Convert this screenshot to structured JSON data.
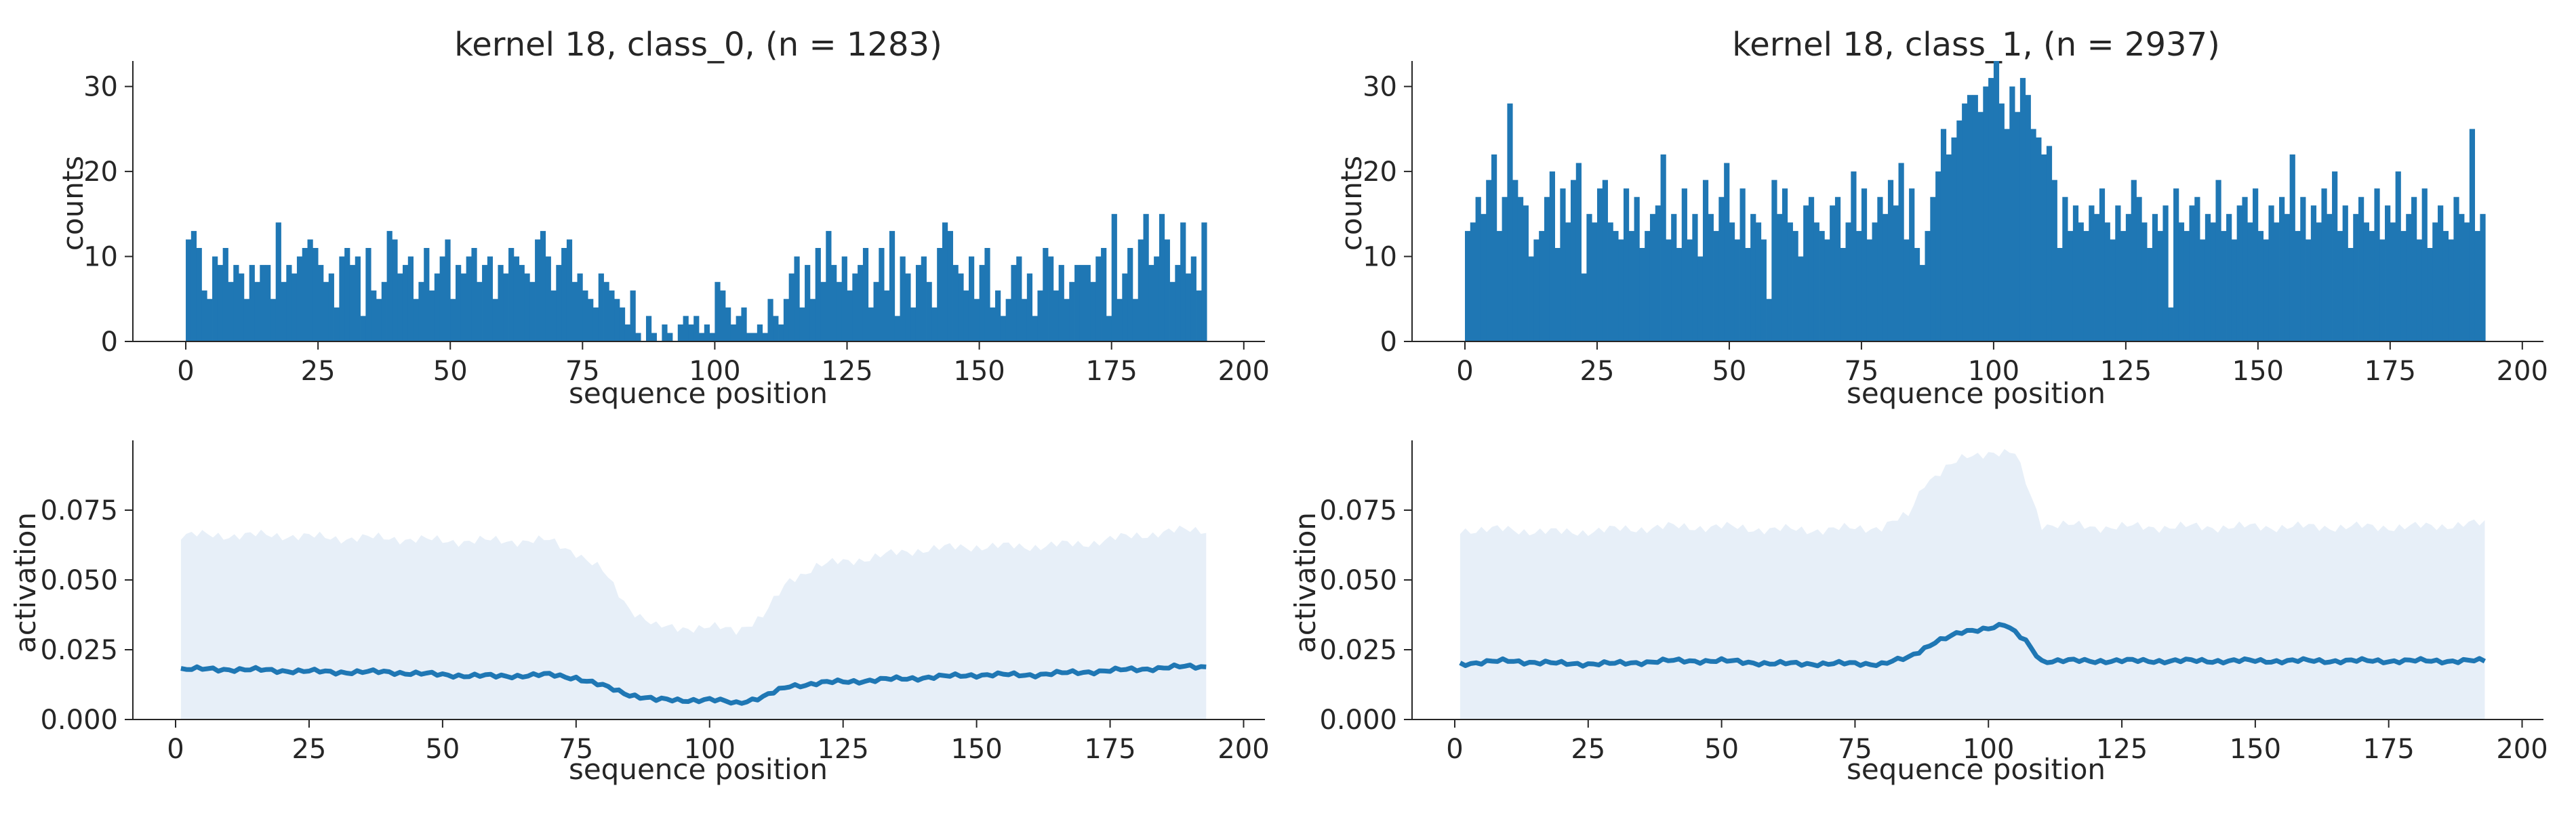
{
  "colors": {
    "bar": "#1f77b4",
    "line": "#1f77b4",
    "band": "#e7eff8",
    "axis": "#262626"
  },
  "chart_data": [
    {
      "type": "bar",
      "title": "kernel 18, class_0, (n = 1283)",
      "xlabel": "sequence position",
      "ylabel": "counts",
      "xlim": [
        -10,
        204
      ],
      "ylim": [
        0,
        33
      ],
      "xticks": [
        0,
        25,
        50,
        75,
        100,
        125,
        150,
        175,
        200
      ],
      "yticks": [
        0,
        10,
        20,
        30
      ],
      "x_start": 0,
      "values": [
        12,
        13,
        11,
        6,
        5,
        10,
        9,
        11,
        7,
        9,
        8,
        5,
        9,
        7,
        9,
        9,
        5,
        14,
        7,
        9,
        8,
        10,
        11,
        12,
        11,
        9,
        7,
        8,
        4,
        10,
        11,
        9,
        10,
        3,
        11,
        6,
        5,
        7,
        13,
        12,
        8,
        9,
        10,
        5,
        7,
        11,
        6,
        8,
        10,
        12,
        5,
        9,
        8,
        10,
        11,
        7,
        9,
        10,
        5,
        9,
        8,
        11,
        10,
        9,
        8,
        7,
        12,
        13,
        10,
        6,
        9,
        11,
        12,
        7,
        8,
        6,
        5,
        4,
        8,
        7,
        6,
        5,
        4,
        2,
        6,
        1,
        0,
        3,
        1,
        0,
        2,
        1,
        0,
        2,
        3,
        2,
        3,
        1,
        2,
        1,
        7,
        6,
        4,
        2,
        3,
        4,
        1,
        1,
        2,
        1,
        5,
        3,
        2,
        5,
        8,
        10,
        4,
        9,
        5,
        11,
        7,
        13,
        9,
        7,
        10,
        6,
        8,
        9,
        11,
        4,
        7,
        11,
        6,
        13,
        3,
        10,
        8,
        4,
        9,
        10,
        7,
        4,
        11,
        14,
        13,
        9,
        8,
        6,
        10,
        5,
        9,
        11,
        4,
        6,
        3,
        5,
        9,
        10,
        5,
        8,
        3,
        6,
        11,
        10,
        6,
        9,
        5,
        7,
        9,
        9,
        9,
        7,
        10,
        11,
        3,
        15,
        5,
        8,
        11,
        5,
        12,
        15,
        9,
        10,
        15,
        12,
        7,
        9,
        14,
        8,
        10,
        6,
        14
      ],
      "axes": [
        {
          "kind": "x",
          "tick_labels": [
            "0",
            "25",
            "50",
            "75",
            "100",
            "125",
            "150",
            "175",
            "200"
          ]
        },
        {
          "kind": "y",
          "tick_labels": [
            "0",
            "10",
            "20",
            "30"
          ]
        }
      ]
    },
    {
      "type": "bar",
      "title": "kernel 18, class_1, (n = 2937)",
      "xlabel": "sequence position",
      "ylabel": "counts",
      "xlim": [
        -10,
        204
      ],
      "ylim": [
        0,
        33
      ],
      "xticks": [
        0,
        25,
        50,
        75,
        100,
        125,
        150,
        175,
        200
      ],
      "yticks": [
        0,
        10,
        20,
        30
      ],
      "x_start": 0,
      "values": [
        13,
        14,
        17,
        15,
        19,
        22,
        13,
        17,
        28,
        19,
        17,
        16,
        10,
        12,
        13,
        17,
        20,
        11,
        18,
        14,
        19,
        21,
        8,
        15,
        14,
        18,
        19,
        14,
        13,
        12,
        18,
        13,
        17,
        11,
        13,
        15,
        16,
        22,
        12,
        15,
        11,
        18,
        12,
        15,
        10,
        19,
        15,
        13,
        17,
        21,
        14,
        12,
        18,
        11,
        15,
        14,
        12,
        5,
        19,
        15,
        18,
        14,
        13,
        10,
        16,
        17,
        14,
        13,
        12,
        16,
        17,
        11,
        14,
        20,
        13,
        18,
        12,
        14,
        17,
        15,
        19,
        16,
        21,
        12,
        18,
        11,
        9,
        13,
        17,
        20,
        25,
        22,
        24,
        26,
        28,
        29,
        29,
        27,
        30,
        31,
        33,
        28,
        25,
        30,
        27,
        31,
        29,
        25,
        24,
        22,
        23,
        19,
        11,
        17,
        13,
        16,
        14,
        13,
        16,
        15,
        18,
        14,
        12,
        16,
        13,
        15,
        19,
        17,
        14,
        11,
        15,
        13,
        16,
        4,
        18,
        14,
        13,
        16,
        17,
        12,
        15,
        14,
        19,
        13,
        15,
        12,
        16,
        17,
        14,
        18,
        13,
        12,
        16,
        14,
        17,
        15,
        22,
        13,
        17,
        12,
        16,
        14,
        18,
        15,
        20,
        13,
        16,
        11,
        15,
        17,
        14,
        13,
        18,
        12,
        16,
        14,
        20,
        13,
        15,
        17,
        12,
        18,
        11,
        14,
        16,
        13,
        12,
        17,
        15,
        14,
        25,
        13,
        15
      ],
      "axes": [
        {
          "kind": "x",
          "tick_labels": [
            "0",
            "25",
            "50",
            "75",
            "100",
            "125",
            "150",
            "175",
            "200"
          ]
        },
        {
          "kind": "y",
          "tick_labels": [
            "0",
            "10",
            "20",
            "30"
          ]
        }
      ]
    },
    {
      "type": "area",
      "xlabel": "sequence position",
      "ylabel": "activation",
      "xlim": [
        -8,
        204
      ],
      "ylim": [
        0,
        0.1
      ],
      "xticks": [
        0,
        25,
        50,
        75,
        100,
        125,
        150,
        175,
        200
      ],
      "yticks": [
        0,
        0.025,
        0.05,
        0.075
      ],
      "x_start": 1,
      "x_end": 193,
      "mean_keypoints": [
        [
          1,
          0.018
        ],
        [
          10,
          0.018
        ],
        [
          20,
          0.0175
        ],
        [
          30,
          0.017
        ],
        [
          40,
          0.017
        ],
        [
          50,
          0.016
        ],
        [
          60,
          0.0155
        ],
        [
          70,
          0.016
        ],
        [
          75,
          0.015
        ],
        [
          80,
          0.012
        ],
        [
          85,
          0.009
        ],
        [
          90,
          0.007
        ],
        [
          100,
          0.007
        ],
        [
          105,
          0.006
        ],
        [
          110,
          0.008
        ],
        [
          115,
          0.012
        ],
        [
          120,
          0.013
        ],
        [
          130,
          0.014
        ],
        [
          140,
          0.015
        ],
        [
          150,
          0.016
        ],
        [
          160,
          0.016
        ],
        [
          170,
          0.017
        ],
        [
          180,
          0.018
        ],
        [
          190,
          0.019
        ],
        [
          193,
          0.019
        ]
      ],
      "upper_keypoints": [
        [
          1,
          0.066
        ],
        [
          10,
          0.066
        ],
        [
          20,
          0.066
        ],
        [
          30,
          0.065
        ],
        [
          40,
          0.065
        ],
        [
          50,
          0.064
        ],
        [
          60,
          0.064
        ],
        [
          70,
          0.064
        ],
        [
          75,
          0.06
        ],
        [
          80,
          0.053
        ],
        [
          85,
          0.04
        ],
        [
          90,
          0.033
        ],
        [
          100,
          0.033
        ],
        [
          105,
          0.032
        ],
        [
          110,
          0.037
        ],
        [
          115,
          0.05
        ],
        [
          120,
          0.055
        ],
        [
          130,
          0.058
        ],
        [
          140,
          0.061
        ],
        [
          150,
          0.062
        ],
        [
          160,
          0.062
        ],
        [
          170,
          0.063
        ],
        [
          180,
          0.066
        ],
        [
          190,
          0.068
        ],
        [
          193,
          0.068
        ]
      ],
      "lower_keypoints": [
        [
          1,
          0
        ],
        [
          193,
          0
        ]
      ],
      "axes": [
        {
          "kind": "x",
          "tick_labels": [
            "0",
            "25",
            "50",
            "75",
            "100",
            "125",
            "150",
            "175",
            "200"
          ]
        },
        {
          "kind": "y",
          "tick_labels": [
            "0.000",
            "0.025",
            "0.050",
            "0.075"
          ]
        }
      ]
    },
    {
      "type": "area",
      "xlabel": "sequence position",
      "ylabel": "activation",
      "xlim": [
        -8,
        204
      ],
      "ylim": [
        0,
        0.1
      ],
      "xticks": [
        0,
        25,
        50,
        75,
        100,
        125,
        150,
        175,
        200
      ],
      "yticks": [
        0,
        0.025,
        0.05,
        0.075
      ],
      "x_start": 1,
      "x_end": 193,
      "mean_keypoints": [
        [
          1,
          0.02
        ],
        [
          10,
          0.021
        ],
        [
          20,
          0.02
        ],
        [
          30,
          0.02
        ],
        [
          40,
          0.021
        ],
        [
          50,
          0.021
        ],
        [
          60,
          0.02
        ],
        [
          70,
          0.02
        ],
        [
          80,
          0.02
        ],
        [
          85,
          0.022
        ],
        [
          90,
          0.028
        ],
        [
          95,
          0.031
        ],
        [
          100,
          0.033
        ],
        [
          103,
          0.034
        ],
        [
          107,
          0.028
        ],
        [
          110,
          0.021
        ],
        [
          120,
          0.021
        ],
        [
          130,
          0.021
        ],
        [
          140,
          0.021
        ],
        [
          150,
          0.021
        ],
        [
          160,
          0.021
        ],
        [
          170,
          0.021
        ],
        [
          180,
          0.021
        ],
        [
          190,
          0.021
        ],
        [
          193,
          0.021
        ]
      ],
      "upper_keypoints": [
        [
          1,
          0.068
        ],
        [
          10,
          0.068
        ],
        [
          20,
          0.067
        ],
        [
          30,
          0.068
        ],
        [
          40,
          0.069
        ],
        [
          50,
          0.069
        ],
        [
          60,
          0.068
        ],
        [
          70,
          0.068
        ],
        [
          80,
          0.069
        ],
        [
          85,
          0.073
        ],
        [
          88,
          0.085
        ],
        [
          92,
          0.09
        ],
        [
          96,
          0.094
        ],
        [
          100,
          0.096
        ],
        [
          105,
          0.095
        ],
        [
          108,
          0.08
        ],
        [
          110,
          0.07
        ],
        [
          120,
          0.069
        ],
        [
          130,
          0.069
        ],
        [
          140,
          0.069
        ],
        [
          150,
          0.069
        ],
        [
          160,
          0.069
        ],
        [
          170,
          0.069
        ],
        [
          180,
          0.069
        ],
        [
          190,
          0.07
        ],
        [
          193,
          0.07
        ]
      ],
      "lower_keypoints": [
        [
          1,
          0
        ],
        [
          193,
          0
        ]
      ],
      "axes": [
        {
          "kind": "x",
          "tick_labels": [
            "0",
            "25",
            "50",
            "75",
            "100",
            "125",
            "150",
            "175",
            "200"
          ]
        },
        {
          "kind": "y",
          "tick_labels": [
            "0.000",
            "0.025",
            "0.050",
            "0.075"
          ]
        }
      ]
    }
  ]
}
